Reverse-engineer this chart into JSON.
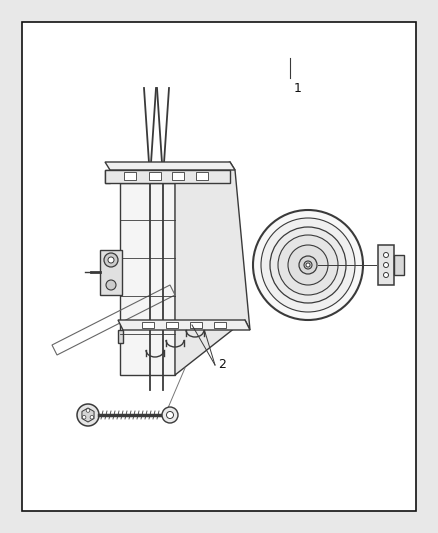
{
  "bg_color": "#ffffff",
  "outer_bg": "#e8e8e8",
  "line_color": "#3a3a3a",
  "label1": "1",
  "label2": "2",
  "fig_width": 4.38,
  "fig_height": 5.33,
  "dpi": 100
}
